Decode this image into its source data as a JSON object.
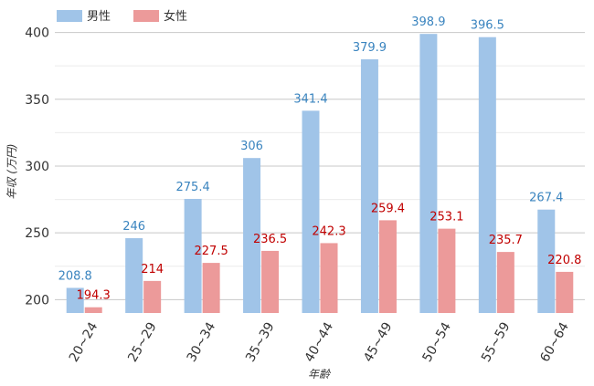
{
  "chart_data": {
    "type": "bar",
    "categories": [
      "20~24",
      "25~29",
      "30~34",
      "35~39",
      "40~44",
      "45~49",
      "50~54",
      "55~59",
      "60~64"
    ],
    "series": [
      {
        "name": "男性",
        "values": [
          208.8,
          246,
          275.4,
          306,
          341.4,
          379.9,
          398.9,
          396.5,
          267.4
        ],
        "color": "#a0c4e8",
        "label_color": "#3a84bf"
      },
      {
        "name": "女性",
        "values": [
          194.3,
          214,
          227.5,
          236.5,
          242.3,
          259.4,
          253.1,
          235.7,
          220.8
        ],
        "color": "#ec9a9a",
        "label_color": "#c00000"
      }
    ],
    "xlabel": "年齢",
    "ylabel": "年収 (万円)",
    "ylim": [
      190,
      412
    ],
    "yticks": [
      200,
      250,
      300,
      350,
      400
    ],
    "grid": true,
    "legend_position": "top-left"
  }
}
